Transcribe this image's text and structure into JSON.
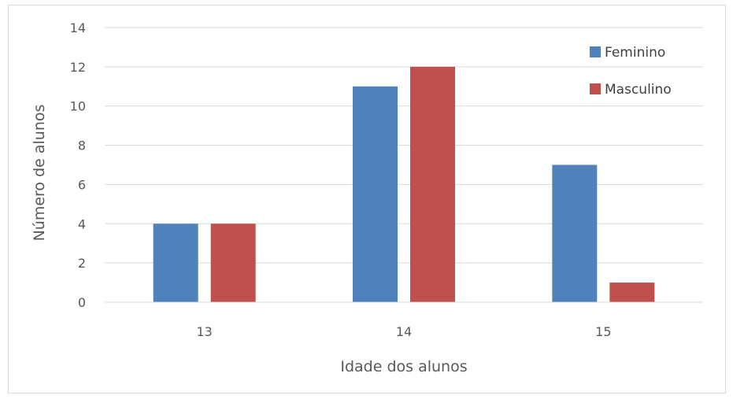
{
  "chart_data": {
    "type": "bar",
    "title": "",
    "xlabel": "Idade dos alunos",
    "ylabel": "Número de alunos",
    "categories": [
      "13",
      "14",
      "15"
    ],
    "series": [
      {
        "name": "Feminino",
        "values": [
          4,
          11,
          7
        ],
        "color": "#4f81bd"
      },
      {
        "name": "Masculino",
        "values": [
          4,
          12,
          1
        ],
        "color": "#c0504d"
      }
    ],
    "ylim": [
      0,
      14
    ],
    "yticks": [
      "0",
      "2",
      "4",
      "6",
      "8",
      "10",
      "12",
      "14"
    ],
    "grid": true,
    "legend_position": "top-right"
  }
}
